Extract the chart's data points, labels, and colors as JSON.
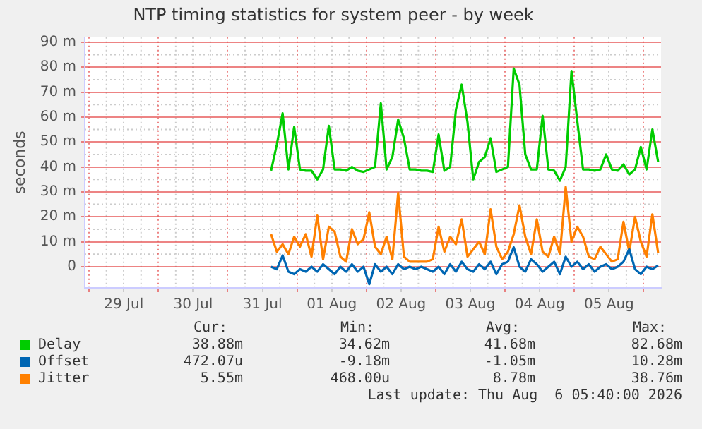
{
  "chart_data": {
    "type": "line",
    "title": "NTP timing statistics for system peer - by week",
    "ylabel": "seconds",
    "x": [
      "2026-07-31T15:00",
      "2026-07-31T17:00",
      "2026-07-31T19:00",
      "2026-07-31T21:00",
      "2026-07-31T23:00",
      "2026-08-01T01:00",
      "2026-08-01T03:00",
      "2026-08-01T05:00",
      "2026-08-01T07:00",
      "2026-08-01T09:00",
      "2026-08-01T11:00",
      "2026-08-01T13:00",
      "2026-08-01T15:00",
      "2026-08-01T17:00",
      "2026-08-01T19:00",
      "2026-08-01T21:00",
      "2026-08-01T23:00",
      "2026-08-02T01:00",
      "2026-08-02T03:00",
      "2026-08-02T05:00",
      "2026-08-02T07:00",
      "2026-08-02T09:00",
      "2026-08-02T11:00",
      "2026-08-02T13:00",
      "2026-08-02T15:00",
      "2026-08-02T17:00",
      "2026-08-02T19:00",
      "2026-08-02T21:00",
      "2026-08-02T23:00",
      "2026-08-03T01:00",
      "2026-08-03T03:00",
      "2026-08-03T05:00",
      "2026-08-03T07:00",
      "2026-08-03T09:00",
      "2026-08-03T11:00",
      "2026-08-03T13:00",
      "2026-08-03T15:00",
      "2026-08-03T17:00",
      "2026-08-03T19:00",
      "2026-08-03T21:00",
      "2026-08-03T23:00",
      "2026-08-04T01:00",
      "2026-08-04T03:00",
      "2026-08-04T05:00",
      "2026-08-04T07:00",
      "2026-08-04T09:00",
      "2026-08-04T11:00",
      "2026-08-04T13:00",
      "2026-08-04T15:00",
      "2026-08-04T17:00",
      "2026-08-04T19:00",
      "2026-08-04T21:00",
      "2026-08-04T23:00",
      "2026-08-05T01:00",
      "2026-08-05T03:00",
      "2026-08-05T05:00",
      "2026-08-05T07:00",
      "2026-08-05T09:00",
      "2026-08-05T11:00",
      "2026-08-05T13:00",
      "2026-08-05T15:00",
      "2026-08-05T17:00",
      "2026-08-05T19:00",
      "2026-08-05T21:00",
      "2026-08-05T23:00",
      "2026-08-06T01:00",
      "2026-08-06T03:00",
      "2026-08-06T05:00"
    ],
    "series": [
      {
        "name": "Delay",
        "color": "#00cc00",
        "values": [
          38.5,
          49,
          61.5,
          39,
          56,
          39,
          38.5,
          38.5,
          35,
          39,
          56.5,
          39,
          39,
          38.5,
          40,
          38.5,
          38,
          39,
          40,
          65.5,
          39,
          44,
          59,
          51.5,
          39,
          39,
          38.5,
          38.5,
          38,
          53,
          38.5,
          40,
          63,
          73,
          58,
          35,
          42,
          44,
          51.5,
          38,
          39,
          40,
          79.5,
          73,
          45,
          39,
          39,
          60.5,
          39,
          38.5,
          34.5,
          40,
          78.5,
          58.5,
          39,
          39,
          38.5,
          39,
          45,
          39,
          38.5,
          41,
          37,
          39,
          48,
          39,
          55,
          42
        ]
      },
      {
        "name": "Offset",
        "color": "#0066b3",
        "values": [
          0,
          -1,
          4.5,
          -2,
          -3,
          -1,
          -2,
          0,
          -2,
          1,
          -1,
          -3,
          0,
          -2,
          1,
          -2,
          0,
          -7,
          1,
          -2,
          0,
          -3,
          1,
          -1,
          0,
          -1,
          0,
          -1,
          -2,
          0,
          -3,
          1,
          -2,
          2,
          -1,
          -2,
          1,
          -1,
          2,
          -3,
          1,
          2,
          7.8,
          0,
          -2,
          3,
          1,
          -2,
          0,
          2,
          -3,
          4,
          0,
          2,
          -1,
          1,
          -2,
          0,
          1,
          -1,
          0,
          2,
          7,
          -1,
          -3,
          0,
          -1,
          0.5
        ]
      },
      {
        "name": "Jitter",
        "color": "#ff8000",
        "values": [
          13,
          6,
          9,
          5,
          12,
          8,
          13,
          4,
          20.5,
          3,
          16,
          14,
          4,
          2,
          15,
          9,
          11,
          21.8,
          8,
          5,
          12,
          3,
          29.6,
          4,
          2,
          2,
          2,
          2,
          3,
          16,
          6,
          12,
          9,
          19,
          4,
          7,
          10,
          5,
          23,
          8,
          3,
          6,
          13,
          24.6,
          12,
          5,
          19,
          6,
          4,
          12,
          5,
          32,
          10,
          16,
          12,
          4,
          3,
          8,
          5,
          2,
          3,
          18,
          6,
          20,
          10,
          4,
          21,
          5.5
        ]
      }
    ],
    "xlim": [
      "2026-07-28T22:30",
      "2026-08-06T06:00"
    ],
    "xticks": [
      {
        "value": "2026-07-29T00:00",
        "label": null
      },
      {
        "value": "2026-07-29T12:00",
        "label": "29 Jul"
      },
      {
        "value": "2026-07-30T00:00",
        "label": null
      },
      {
        "value": "2026-07-30T12:00",
        "label": "30 Jul"
      },
      {
        "value": "2026-07-31T00:00",
        "label": null
      },
      {
        "value": "2026-07-31T12:00",
        "label": "31 Jul"
      },
      {
        "value": "2026-08-01T00:00",
        "label": null
      },
      {
        "value": "2026-08-01T12:00",
        "label": "01 Aug"
      },
      {
        "value": "2026-08-02T00:00",
        "label": null
      },
      {
        "value": "2026-08-02T12:00",
        "label": "02 Aug"
      },
      {
        "value": "2026-08-03T00:00",
        "label": null
      },
      {
        "value": "2026-08-03T12:00",
        "label": "03 Aug"
      },
      {
        "value": "2026-08-04T00:00",
        "label": null
      },
      {
        "value": "2026-08-04T12:00",
        "label": "04 Aug"
      },
      {
        "value": "2026-08-05T00:00",
        "label": null
      },
      {
        "value": "2026-08-05T12:00",
        "label": "05 Aug"
      },
      {
        "value": "2026-08-06T00:00",
        "label": null
      }
    ],
    "ylim": [
      -8.5,
      92
    ],
    "yticks": [
      0,
      {
        "value": 10,
        "label": "10 m"
      },
      {
        "value": 20,
        "label": "20 m"
      },
      {
        "value": 30,
        "label": "30 m"
      },
      {
        "value": 40,
        "label": "40 m"
      },
      {
        "value": 50,
        "label": "50 m"
      },
      {
        "value": 60,
        "label": "60 m"
      },
      {
        "value": 70,
        "label": "70 m"
      },
      {
        "value": 80,
        "label": "80 m"
      },
      {
        "value": 90,
        "label": "90 m"
      }
    ],
    "grid": true,
    "legend": "bottom",
    "marker": "none",
    "line_style": "solid",
    "annotations": [
      "Cur:",
      "Min:",
      "Avg:",
      "Max:",
      "38.88m",
      "34.62m",
      "41.68m",
      "82.68m",
      "472.07u",
      "-9.18m",
      "-1.05m",
      "10.28m",
      "5.55m",
      "468.00u",
      "8.78m",
      "38.76m",
      "Last update: Thu Aug  6 05:40:00 2026"
    ]
  }
}
